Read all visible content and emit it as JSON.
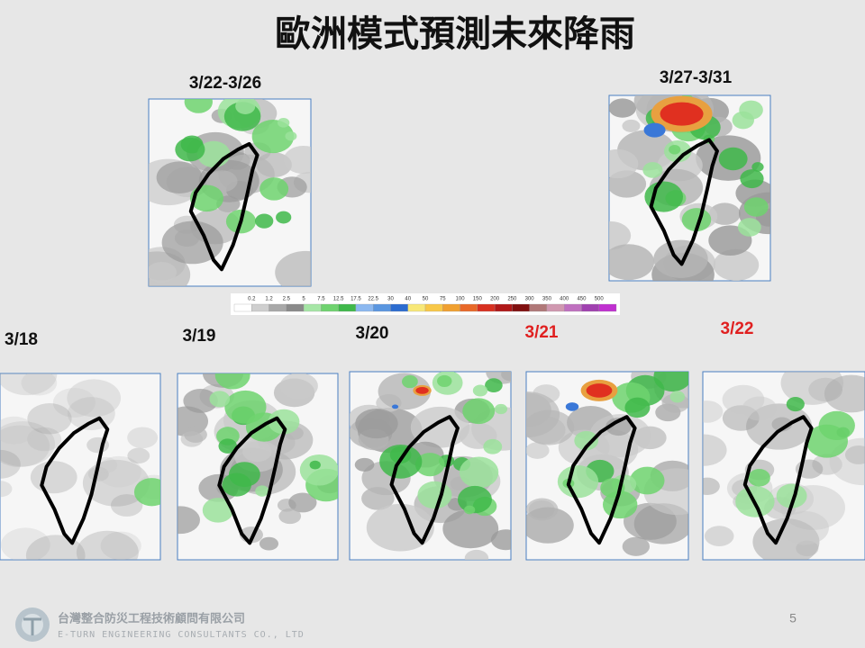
{
  "title": "歐洲模式預測未來降雨",
  "panels": [
    {
      "label": "3/22-3/26",
      "color": "#111111"
    },
    {
      "label": "3/27-3/31",
      "color": "#111111"
    },
    {
      "label": "3/18",
      "color": "#111111"
    },
    {
      "label": "3/19",
      "color": "#111111"
    },
    {
      "label": "3/20",
      "color": "#111111"
    },
    {
      "label": "3/21",
      "color": "#e02020"
    },
    {
      "label": "3/22",
      "color": "#e02020"
    }
  ],
  "colorbar": {
    "ticks": [
      0.2,
      1.2,
      2.5,
      5,
      7.5,
      12.5,
      17.5,
      22.5,
      30,
      40,
      50,
      75,
      100,
      150,
      200,
      250,
      300,
      350,
      400,
      450,
      500
    ]
  },
  "footer": {
    "company": "台灣整合防災工程技術顧問有限公司",
    "company_en": "E-TURN ENGINEERING CONSULTANTS CO., LTD",
    "page": "5"
  }
}
